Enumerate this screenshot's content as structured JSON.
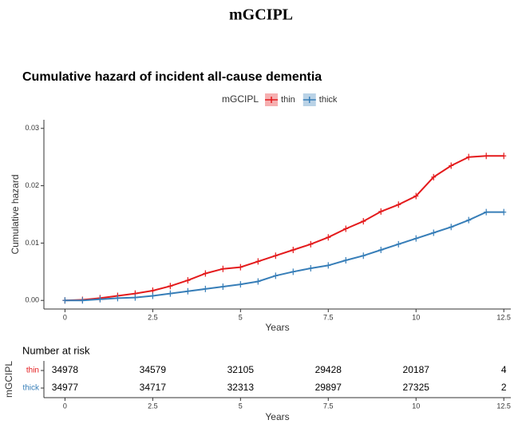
{
  "header": {
    "title": "mGCIPL"
  },
  "chart_data": [
    {
      "type": "line",
      "title": "Cumulative hazard of incident all-cause dementia",
      "legend_title": "mGCIPL",
      "x_label": "Years",
      "y_label": "Cumulative hazard",
      "x": [
        0,
        0.5,
        1,
        1.5,
        2,
        2.5,
        3,
        3.5,
        4,
        4.5,
        5,
        5.5,
        6,
        6.5,
        7,
        7.5,
        8,
        8.5,
        9,
        9.5,
        10,
        10.5,
        11,
        11.5,
        12,
        12.5
      ],
      "series": [
        {
          "name": "thin",
          "color": "#e41a1c",
          "values": [
            0,
            0.0001,
            0.0004,
            0.0008,
            0.0012,
            0.0017,
            0.0025,
            0.0035,
            0.0047,
            0.0055,
            0.0058,
            0.0068,
            0.0078,
            0.0088,
            0.0098,
            0.011,
            0.0125,
            0.0138,
            0.0155,
            0.0167,
            0.0182,
            0.0215,
            0.0235,
            0.025,
            0.0252,
            0.0252
          ]
        },
        {
          "name": "thick",
          "color": "#377eb8",
          "values": [
            0,
            0,
            0.0002,
            0.0004,
            0.0005,
            0.0008,
            0.0012,
            0.0016,
            0.002,
            0.0024,
            0.0028,
            0.0033,
            0.0043,
            0.005,
            0.0056,
            0.0061,
            0.007,
            0.0078,
            0.0088,
            0.0098,
            0.0108,
            0.0118,
            0.0128,
            0.014,
            0.0154,
            0.0154
          ]
        }
      ],
      "xlim": [
        -0.6,
        12.7
      ],
      "ylim": [
        -0.0015,
        0.0315
      ],
      "xticks": [
        0,
        2.5,
        5,
        7.5,
        10,
        12.5
      ],
      "yticks": [
        {
          "value": 0,
          "label": "0.00"
        },
        {
          "value": 0.01,
          "label": "0.01"
        },
        {
          "value": 0.02,
          "label": "0.02"
        },
        {
          "value": 0.03,
          "label": "0.03"
        }
      ],
      "legend_position": "top"
    },
    {
      "type": "risk_table",
      "title": "Number at risk",
      "y_label": "mGCIPL",
      "x_label": "Years",
      "x": [
        0,
        2.5,
        5,
        7.5,
        10,
        12.5
      ],
      "series": [
        {
          "name": "thin",
          "color": "#e41a1c",
          "values": [
            34978,
            34579,
            32105,
            29428,
            20187,
            4
          ]
        },
        {
          "name": "thick",
          "color": "#377eb8",
          "values": [
            34977,
            34717,
            32313,
            29897,
            27325,
            2
          ]
        }
      ],
      "xlim": [
        -0.6,
        12.7
      ],
      "xticks": [
        0,
        2.5,
        5,
        7.5,
        10,
        12.5
      ]
    }
  ]
}
